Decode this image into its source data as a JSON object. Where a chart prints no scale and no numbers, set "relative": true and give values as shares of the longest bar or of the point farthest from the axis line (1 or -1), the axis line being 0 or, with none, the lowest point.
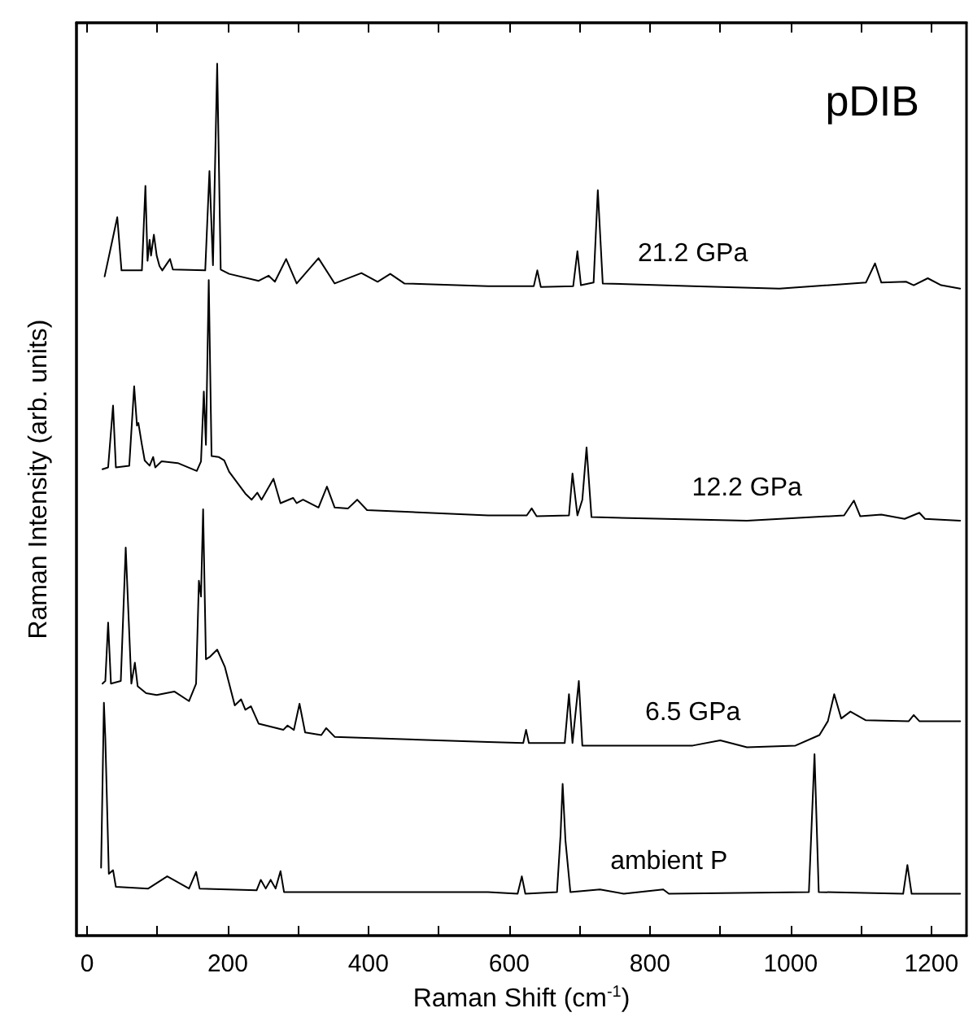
{
  "chart_data": {
    "type": "line",
    "title": "pDIB",
    "xlabel": "Raman Shift (cm$^{-1}$)",
    "ylabel": "Raman Intensity (arb. units)",
    "relative": true,
    "xlim": [
      -15,
      1250
    ],
    "xticks": [
      0,
      {
        "value": 100,
        "label": null
      },
      200,
      {
        "value": 300,
        "label": null
      },
      400,
      {
        "value": 500,
        "label": null
      },
      600,
      {
        "value": 700,
        "label": null
      },
      800,
      {
        "value": 900,
        "label": null
      },
      1000,
      {
        "value": 1100,
        "label": null
      },
      1200
    ],
    "grid": false,
    "legend": false,
    "marker": "none",
    "line_style": "solid",
    "series": [
      {
        "name": "21.2 GPa",
        "color": "#000000",
        "x": [
          25,
          43,
          49,
          78,
          83,
          86,
          89,
          91,
          95,
          99,
          103,
          107,
          118,
          122,
          168,
          174,
          179,
          185,
          190,
          202,
          244,
          258,
          267,
          283,
          298,
          329,
          352,
          390,
          413,
          431,
          451,
          570,
          635,
          640,
          645,
          691,
          697,
          702,
          720,
          726,
          733,
          861,
          984,
          1107,
          1120,
          1129,
          1164,
          1175,
          1195,
          1214,
          1241
        ],
        "values": [
          0.756,
          0.824,
          0.763,
          0.763,
          0.86,
          0.774,
          0.798,
          0.78,
          0.804,
          0.78,
          0.768,
          0.763,
          0.776,
          0.764,
          0.763,
          0.877,
          0.769,
          1.0,
          0.764,
          0.759,
          0.751,
          0.757,
          0.75,
          0.776,
          0.748,
          0.777,
          0.748,
          0.76,
          0.75,
          0.759,
          0.748,
          0.745,
          0.745,
          0.763,
          0.744,
          0.745,
          0.785,
          0.746,
          0.749,
          0.855,
          0.748,
          0.745,
          0.742,
          0.749,
          0.771,
          0.749,
          0.75,
          0.746,
          0.754,
          0.746,
          0.742
        ]
      },
      {
        "name": "12.2 GPa",
        "color": "#000000",
        "x": [
          22,
          30,
          37,
          41,
          60,
          67,
          71,
          73,
          78,
          82,
          89,
          94,
          97,
          106,
          129,
          156,
          162,
          166,
          169,
          173,
          177,
          187,
          195,
          202,
          225,
          234,
          242,
          248,
          265,
          275,
          293,
          298,
          307,
          329,
          341,
          352,
          371,
          384,
          398,
          570,
          625,
          632,
          639,
          685,
          690,
          697,
          704,
          710,
          717,
          938,
          1076,
          1090,
          1099,
          1129,
          1162,
          1183,
          1191,
          1241
        ],
        "values": [
          0.535,
          0.537,
          0.608,
          0.537,
          0.539,
          0.63,
          0.585,
          0.588,
          0.563,
          0.545,
          0.539,
          0.549,
          0.537,
          0.544,
          0.542,
          0.533,
          0.544,
          0.624,
          0.563,
          0.752,
          0.55,
          0.549,
          0.545,
          0.532,
          0.507,
          0.5,
          0.508,
          0.5,
          0.524,
          0.496,
          0.502,
          0.496,
          0.5,
          0.491,
          0.515,
          0.491,
          0.49,
          0.5,
          0.488,
          0.482,
          0.482,
          0.49,
          0.481,
          0.482,
          0.53,
          0.482,
          0.5,
          0.56,
          0.48,
          0.476,
          0.482,
          0.499,
          0.481,
          0.483,
          0.478,
          0.485,
          0.478,
          0.476
        ]
      },
      {
        "name": "6.5 GPa",
        "color": "#000000",
        "x": [
          22,
          26,
          30,
          34,
          48,
          55,
          63,
          68,
          72,
          84,
          99,
          124,
          145,
          155,
          159,
          162,
          165,
          169,
          175,
          185,
          196,
          210,
          219,
          225,
          233,
          244,
          279,
          285,
          294,
          302,
          310,
          333,
          340,
          352,
          570,
          620,
          624,
          628,
          679,
          685,
          690,
          699,
          704,
          861,
          900,
          938,
          1007,
          1041,
          1053,
          1062,
          1072,
          1085,
          1107,
          1168,
          1175,
          1183,
          1241
        ],
        "values": [
          0.289,
          0.292,
          0.359,
          0.289,
          0.292,
          0.445,
          0.289,
          0.313,
          0.286,
          0.278,
          0.276,
          0.28,
          0.269,
          0.289,
          0.407,
          0.389,
          0.489,
          0.317,
          0.32,
          0.328,
          0.308,
          0.264,
          0.271,
          0.259,
          0.263,
          0.243,
          0.236,
          0.241,
          0.236,
          0.266,
          0.233,
          0.23,
          0.238,
          0.228,
          0.222,
          0.221,
          0.236,
          0.221,
          0.221,
          0.277,
          0.221,
          0.292,
          0.218,
          0.218,
          0.224,
          0.216,
          0.218,
          0.23,
          0.246,
          0.277,
          0.249,
          0.257,
          0.247,
          0.246,
          0.253,
          0.246,
          0.246
        ]
      },
      {
        "name": "ambient P",
        "color": "#000000",
        "x": [
          20,
          24,
          26,
          31,
          37,
          41,
          87,
          114,
          145,
          155,
          160,
          241,
          247,
          254,
          261,
          268,
          275,
          280,
          570,
          612,
          618,
          623,
          668,
          673,
          676,
          680,
          687,
          729,
          763,
          819,
          827,
          1026,
          1034,
          1040,
          1160,
          1166,
          1172,
          1241
        ],
        "values": [
          0.078,
          0.267,
          0.227,
          0.071,
          0.075,
          0.056,
          0.054,
          0.068,
          0.054,
          0.073,
          0.054,
          0.052,
          0.064,
          0.054,
          0.064,
          0.054,
          0.074,
          0.05,
          0.05,
          0.048,
          0.068,
          0.048,
          0.05,
          0.115,
          0.174,
          0.109,
          0.05,
          0.053,
          0.048,
          0.053,
          0.048,
          0.05,
          0.208,
          0.05,
          0.048,
          0.081,
          0.048,
          0.048
        ]
      }
    ]
  }
}
